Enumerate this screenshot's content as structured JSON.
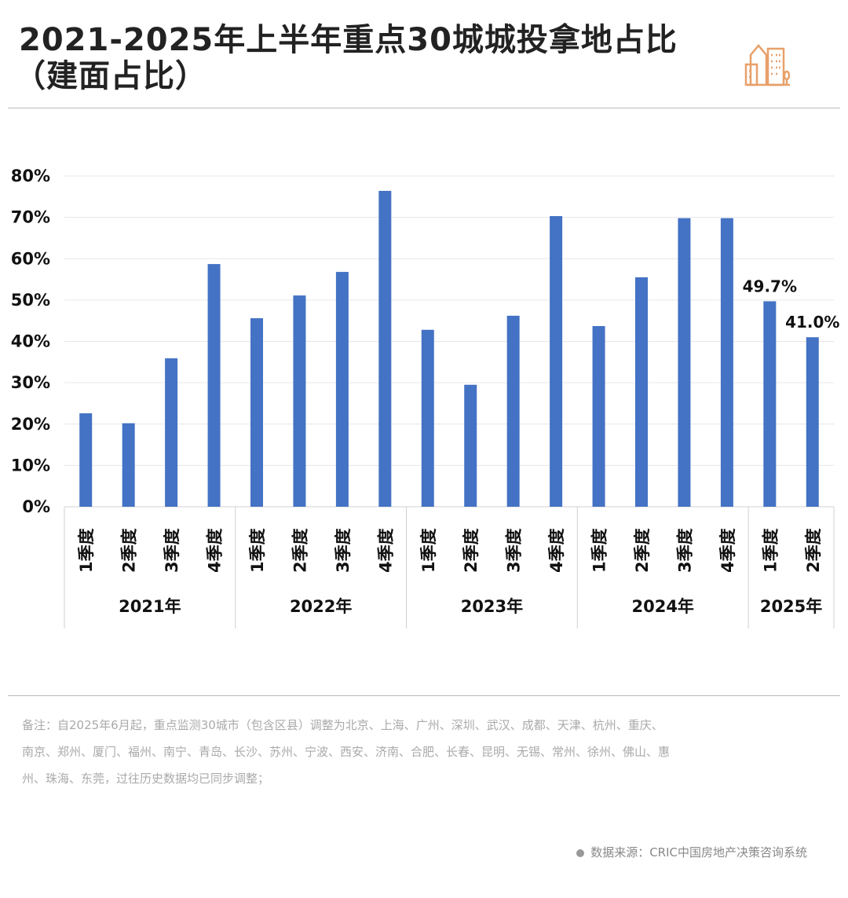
{
  "header": {
    "title_line1": "2021-2025年上半年重点30城城投拿地占比",
    "title_line2": "（建面占比）",
    "logo_icon": "city-buildings-icon",
    "accent_color": "#e8a06a"
  },
  "chart_data": {
    "type": "bar",
    "title": "2021-2025年上半年重点30城城投拿地占比（建面占比）",
    "ylabel": "",
    "xlabel": "",
    "ylim": [
      0,
      80
    ],
    "yticks": [
      "0%",
      "10%",
      "20%",
      "30%",
      "40%",
      "50%",
      "60%",
      "70%",
      "80%"
    ],
    "grid": true,
    "bar_color": "#4472c4",
    "groups": [
      {
        "year": "2021年",
        "quarters": [
          "1季度",
          "2季度",
          "3季度",
          "4季度"
        ],
        "values": [
          22.6,
          20.2,
          35.9,
          58.7
        ]
      },
      {
        "year": "2022年",
        "quarters": [
          "1季度",
          "2季度",
          "3季度",
          "4季度"
        ],
        "values": [
          45.6,
          51.1,
          56.8,
          76.4
        ]
      },
      {
        "year": "2023年",
        "quarters": [
          "1季度",
          "2季度",
          "3季度",
          "4季度"
        ],
        "values": [
          42.8,
          29.5,
          46.2,
          70.3
        ]
      },
      {
        "year": "2024年",
        "quarters": [
          "1季度",
          "2季度",
          "3季度",
          "4季度"
        ],
        "values": [
          43.7,
          55.5,
          69.8,
          69.8
        ]
      },
      {
        "year": "2025年",
        "quarters": [
          "1季度",
          "2季度"
        ],
        "values": [
          49.7,
          41.0
        ],
        "labels": [
          "49.7%",
          "41.0%"
        ]
      }
    ]
  },
  "footer": {
    "note": "备注：自2025年6月起，重点监测30城市（包含区县）调整为北京、上海、广州、深圳、武汉、成都、天津、杭州、重庆、南京、郑州、厦门、福州、南宁、青岛、长沙、苏州、宁波、西安、济南、合肥、长春、昆明、无锡、常州、徐州、佛山、惠州、珠海、东莞，过往历史数据均已同步调整；",
    "source": "数据来源：CRIC中国房地产决策咨询系统"
  }
}
